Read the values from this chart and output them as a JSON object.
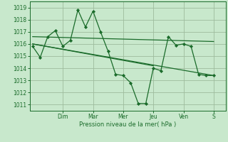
{
  "bg_color": "#c8e8cc",
  "grid_color": "#9dbb9d",
  "line_color": "#1a6b2a",
  "marker_color": "#1a6b2a",
  "xlabel": "Pression niveau de la mer( hPa )",
  "ylim": [
    1010.5,
    1019.5
  ],
  "yticks": [
    1011,
    1012,
    1013,
    1014,
    1015,
    1016,
    1017,
    1018,
    1019
  ],
  "day_labels": [
    "Dim",
    "Mar",
    "Mer",
    "Jeu",
    "Ven",
    "S"
  ],
  "day_positions": [
    2.0,
    4.0,
    6.0,
    8.0,
    10.0,
    12.0
  ],
  "xlim": [
    -0.2,
    12.8
  ],
  "series1_x": [
    0,
    0.5,
    1,
    1.5,
    2,
    2.5,
    3,
    3.5,
    4,
    4.5,
    5,
    5.5,
    6,
    6.5,
    7,
    7.5,
    8,
    8.5,
    9,
    9.5,
    10,
    10.5,
    11,
    11.5,
    12
  ],
  "series1_y": [
    1015.8,
    1014.9,
    1016.6,
    1017.1,
    1015.8,
    1016.3,
    1018.8,
    1017.4,
    1018.7,
    1017.0,
    1015.4,
    1013.5,
    1013.4,
    1012.8,
    1011.1,
    1011.1,
    1014.0,
    1013.8,
    1016.6,
    1015.9,
    1016.0,
    1015.8,
    1013.5,
    1013.4,
    1013.4
  ],
  "trend1_x": [
    0,
    12
  ],
  "trend1_y": [
    1016.6,
    1016.2
  ],
  "trend2_x": [
    0,
    12
  ],
  "trend2_y": [
    1016.0,
    1013.4
  ],
  "trend3_x": [
    0,
    8
  ],
  "trend3_y": [
    1016.0,
    1014.2
  ]
}
